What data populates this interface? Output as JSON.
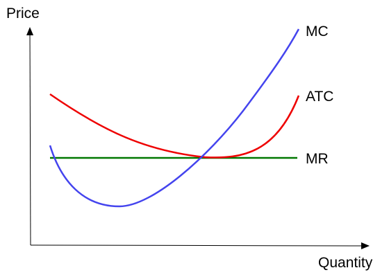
{
  "axes": {
    "y_label": "Price",
    "x_label": "Quantity"
  },
  "curves": {
    "mc": {
      "label": "MC",
      "color": "#4444ee"
    },
    "atc": {
      "label": "ATC",
      "color": "#ee0000"
    },
    "mr": {
      "label": "MR",
      "color": "#007700"
    }
  },
  "colors": {
    "axis": "#000000",
    "background": "#ffffff"
  }
}
